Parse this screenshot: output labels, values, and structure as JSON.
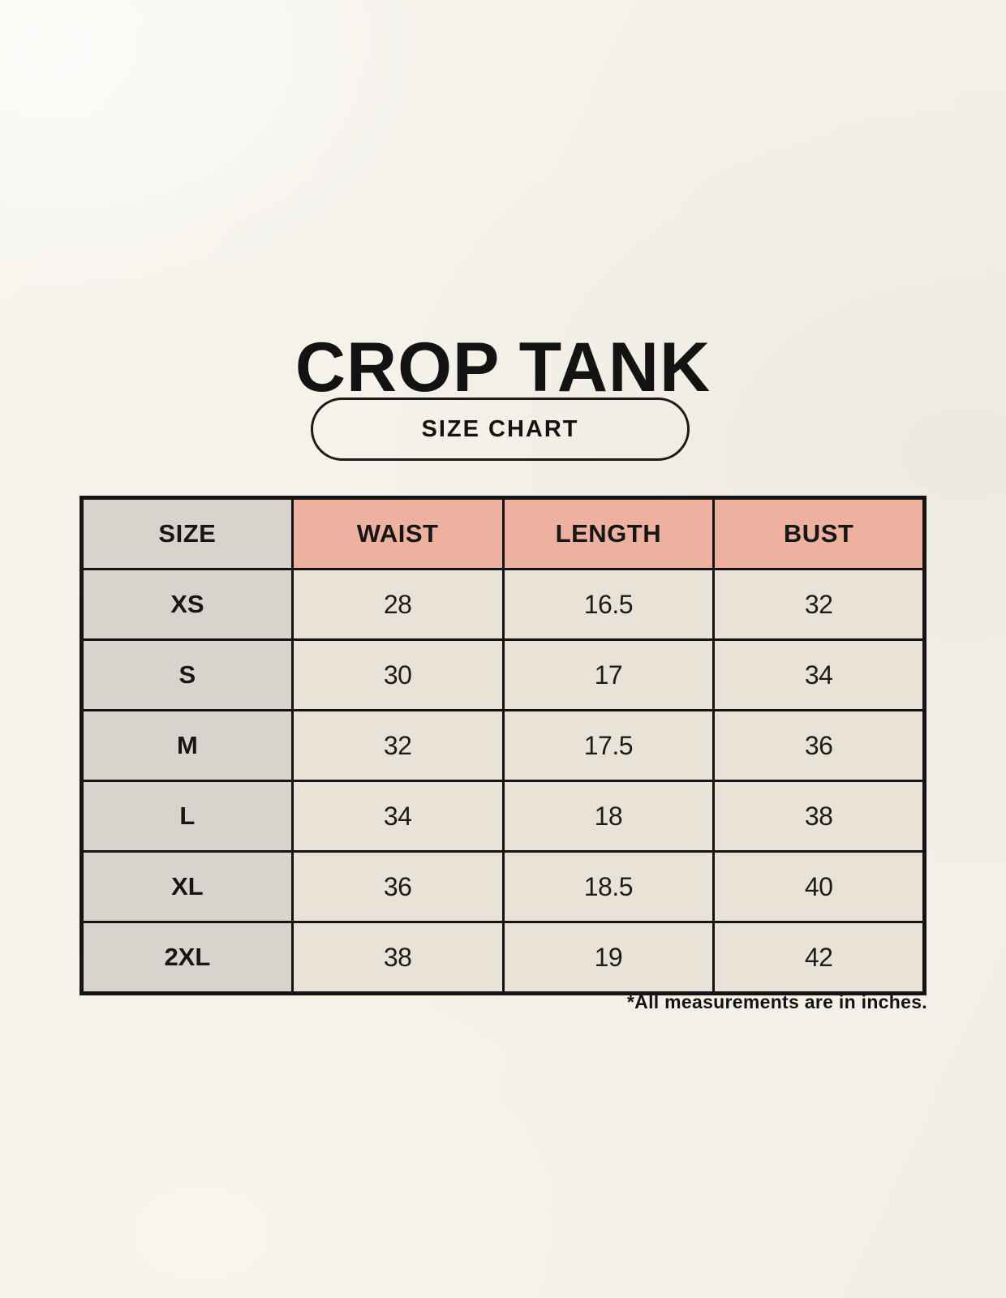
{
  "page": {
    "title": "CROP TANK",
    "badge_label": "SIZE CHART",
    "footnote": "*All measurements are in inches."
  },
  "table": {
    "columns": [
      "SIZE",
      "WAIST",
      "LENGTH",
      "BUST"
    ],
    "rows": [
      {
        "size": "XS",
        "waist": "28",
        "length": "16.5",
        "bust": "32"
      },
      {
        "size": "S",
        "waist": "30",
        "length": "17",
        "bust": "34"
      },
      {
        "size": "M",
        "waist": "32",
        "length": "17.5",
        "bust": "36"
      },
      {
        "size": "L",
        "waist": "34",
        "length": "18",
        "bust": "38"
      },
      {
        "size": "XL",
        "waist": "36",
        "length": "18.5",
        "bust": "40"
      },
      {
        "size": "2XL",
        "waist": "38",
        "length": "19",
        "bust": "42"
      }
    ]
  },
  "colors": {
    "background": "#F4F1E9",
    "header_pink": "#EEB1A0",
    "cell_gray": "#D9D3CE",
    "cell_beige": "#E9E3D7",
    "border_black": "#141414"
  },
  "chart_data": {
    "type": "table",
    "title": "CROP TANK",
    "subtitle": "SIZE CHART",
    "columns": [
      "SIZE",
      "WAIST",
      "LENGTH",
      "BUST"
    ],
    "rows": [
      [
        "XS",
        28,
        16.5,
        32
      ],
      [
        "S",
        30,
        17,
        34
      ],
      [
        "M",
        32,
        17.5,
        36
      ],
      [
        "L",
        34,
        18,
        38
      ],
      [
        "XL",
        36,
        18.5,
        40
      ],
      [
        "2XL",
        38,
        19,
        42
      ]
    ],
    "units": "inches",
    "note": "*All measurements are in inches."
  }
}
